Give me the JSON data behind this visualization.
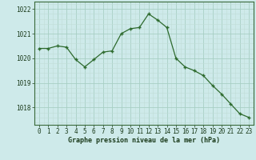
{
  "hours": [
    0,
    1,
    2,
    3,
    4,
    5,
    6,
    7,
    8,
    9,
    10,
    11,
    12,
    13,
    14,
    15,
    16,
    17,
    18,
    19,
    20,
    21,
    22,
    23
  ],
  "pressure": [
    1020.4,
    1020.4,
    1020.5,
    1020.45,
    1019.95,
    1019.65,
    1019.95,
    1020.25,
    1020.3,
    1021.0,
    1021.2,
    1021.25,
    1021.8,
    1021.55,
    1021.25,
    1020.0,
    1019.65,
    1019.5,
    1019.3,
    1018.9,
    1018.55,
    1018.15,
    1017.75,
    1017.6
  ],
  "ylim": [
    1017.3,
    1022.3
  ],
  "yticks": [
    1018,
    1019,
    1020,
    1021,
    1022
  ],
  "line_color": "#2d6a2d",
  "marker_color": "#2d6a2d",
  "bg_color": "#ceeaea",
  "grid_color_major": "#a8cfc4",
  "grid_color_minor": "#c0ddd8",
  "xlabel": "Graphe pression niveau de la mer (hPa)",
  "tick_fontsize": 5.5,
  "xlabel_fontsize": 6.0
}
